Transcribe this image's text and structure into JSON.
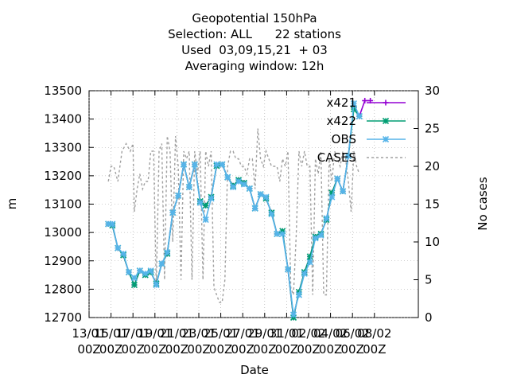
{
  "chart_data": {
    "type": "line",
    "title_lines": [
      "Geopotential 150hPa",
      "Selection: ALL      22 stations",
      "Used  03,09,15,21  + 03",
      "Averaging window: 12h"
    ],
    "xlabel": "Date",
    "ylabel": "m",
    "y2label": "No cases",
    "xlim": [
      0,
      30
    ],
    "ylim": [
      12700,
      13500
    ],
    "y2lim": [
      0,
      30
    ],
    "x_ticks": [
      {
        "v": 0,
        "l1": "13/01",
        "l2": "00Z"
      },
      {
        "v": 2,
        "l1": "15/01",
        "l2": "00Z"
      },
      {
        "v": 4,
        "l1": "17/01",
        "l2": "00Z"
      },
      {
        "v": 6,
        "l1": "19/01",
        "l2": "00Z"
      },
      {
        "v": 8,
        "l1": "21/01",
        "l2": "00Z"
      },
      {
        "v": 10,
        "l1": "23/01",
        "l2": "00Z"
      },
      {
        "v": 12,
        "l1": "25/01",
        "l2": "00Z"
      },
      {
        "v": 14,
        "l1": "27/01",
        "l2": "00Z"
      },
      {
        "v": 16,
        "l1": "29/01",
        "l2": "00Z"
      },
      {
        "v": 18,
        "l1": "31/01",
        "l2": "00Z"
      },
      {
        "v": 20,
        "l1": "02/02",
        "l2": "00Z"
      },
      {
        "v": 22,
        "l1": "04/02",
        "l2": "00Z"
      },
      {
        "v": 24,
        "l1": "06/02",
        "l2": "00Z"
      },
      {
        "v": 26,
        "l1": "08/02",
        "l2": "00Z"
      }
    ],
    "y_ticks": [
      "12700",
      "12800",
      "12900",
      "13000",
      "13100",
      "13200",
      "13300",
      "13400",
      "13500"
    ],
    "y2_ticks": [
      "0",
      "5",
      "10",
      "15",
      "20",
      "25",
      "30"
    ],
    "series": [
      {
        "name": "x421",
        "color": "#9400d3",
        "marker": "plus",
        "axis": "y",
        "x": [
          1.75,
          2.125,
          2.625,
          3.125,
          3.625,
          4.125,
          4.625,
          5.125,
          5.625,
          6.125,
          6.625,
          7.125,
          7.625,
          8.125,
          8.625,
          9.125,
          9.625,
          10.125,
          10.625,
          11.125,
          11.625,
          12.125,
          12.625,
          13.125,
          13.625,
          14.125,
          14.625,
          15.125,
          15.625,
          16.125,
          16.625,
          17.125,
          17.625,
          18.125,
          18.625,
          19.125,
          19.625,
          20.125,
          20.625,
          21.125,
          21.625,
          22.125,
          22.625,
          23.125,
          23.625,
          24.125,
          24.625,
          25.125,
          25.625
        ],
        "y": [
          13030,
          13025,
          12945,
          12920,
          12860,
          12815,
          12865,
          12850,
          12860,
          12820,
          12890,
          12925,
          13070,
          13130,
          13240,
          13160,
          13240,
          13110,
          13095,
          13125,
          13235,
          13240,
          13195,
          13165,
          13185,
          13175,
          13155,
          13085,
          13135,
          13120,
          13070,
          12995,
          13005,
          12870,
          12700,
          12790,
          12860,
          12915,
          12985,
          12995,
          13045,
          13140,
          13190,
          13145,
          13270,
          13440,
          13410,
          13465,
          13465
        ]
      },
      {
        "name": "x422",
        "color": "#009e73",
        "marker": "star",
        "axis": "y",
        "x": [
          1.75,
          2.125,
          2.625,
          3.125,
          3.625,
          4.125,
          4.625,
          5.125,
          5.625,
          6.125,
          6.625,
          7.125,
          7.625,
          8.125,
          8.625,
          9.125,
          9.625,
          10.125,
          10.625,
          11.125,
          11.625,
          12.125,
          12.625,
          13.125,
          13.625,
          14.125,
          14.625,
          15.125,
          15.625,
          16.125,
          16.625,
          17.125,
          17.625,
          18.125,
          18.625,
          19.125,
          19.625,
          20.125,
          20.625,
          21.125,
          21.625,
          22.125,
          22.625,
          23.125,
          23.625,
          24.125,
          24.625
        ],
        "y": [
          13030,
          13025,
          12945,
          12920,
          12860,
          12815,
          12865,
          12850,
          12860,
          12820,
          12890,
          12925,
          13070,
          13130,
          13240,
          13160,
          13240,
          13110,
          13095,
          13125,
          13235,
          13240,
          13195,
          13165,
          13185,
          13175,
          13155,
          13085,
          13135,
          13120,
          13070,
          12995,
          13005,
          12870,
          12700,
          12790,
          12860,
          12915,
          12985,
          12995,
          13045,
          13140,
          13190,
          13145,
          13270,
          13435,
          13410
        ]
      },
      {
        "name": "OBS",
        "color": "#56b4e9",
        "marker": "star",
        "axis": "y",
        "x": [
          1.75,
          2.125,
          2.625,
          3.125,
          3.625,
          4.125,
          4.625,
          5.125,
          5.625,
          6.125,
          6.625,
          7.125,
          7.625,
          8.125,
          8.625,
          9.125,
          9.625,
          10.125,
          10.625,
          11.125,
          11.625,
          12.125,
          12.625,
          13.125,
          13.625,
          14.125,
          14.625,
          15.125,
          15.625,
          16.125,
          16.625,
          17.125,
          17.625,
          18.125,
          18.625,
          19.125,
          19.625,
          20.125,
          20.625,
          21.125,
          21.625,
          22.125,
          22.625,
          23.125,
          23.625,
          24.125,
          24.625
        ],
        "y": [
          13030,
          13030,
          12945,
          12925,
          12860,
          12840,
          12865,
          12855,
          12865,
          12815,
          12890,
          12930,
          13070,
          13130,
          13240,
          13160,
          13240,
          13105,
          13045,
          13120,
          13240,
          13240,
          13195,
          13160,
          13180,
          13170,
          13155,
          13085,
          13135,
          13125,
          13065,
          12995,
          12995,
          12870,
          12710,
          12780,
          12855,
          12895,
          12980,
          12990,
          13050,
          13125,
          13190,
          13145,
          13270,
          13455,
          13410
        ]
      },
      {
        "name": "CASES",
        "color": "#a0a0a0",
        "marker": "none",
        "dashed": true,
        "axis": "y2",
        "x": [
          1.75,
          2.0,
          2.25,
          2.625,
          3.0,
          3.375,
          3.75,
          4.0,
          4.125,
          4.375,
          4.625,
          4.875,
          5.125,
          5.375,
          5.625,
          5.875,
          6.125,
          6.375,
          6.625,
          6.875,
          7.125,
          7.375,
          7.625,
          7.875,
          8.125,
          8.375,
          8.625,
          8.875,
          9.125,
          9.375,
          9.625,
          9.875,
          10.125,
          10.375,
          10.625,
          10.875,
          11.125,
          11.375,
          11.625,
          11.875,
          12.125,
          12.375,
          12.625,
          12.875,
          13.125,
          13.375,
          13.625,
          13.875,
          14.125,
          14.375,
          14.625,
          14.875,
          15.125,
          15.375,
          15.625,
          15.875,
          16.125,
          16.375,
          16.625,
          16.875,
          17.125,
          17.375,
          17.625,
          17.875,
          18.125,
          18.375,
          18.625,
          18.875,
          19.125,
          19.375,
          19.625,
          19.875,
          20.125,
          20.375,
          20.625,
          20.875,
          21.125,
          21.375,
          21.625,
          21.875,
          22.125,
          22.375,
          22.625,
          22.875,
          23.125,
          23.375,
          23.625,
          23.875,
          24.125,
          24.375,
          24.625
        ],
        "y": [
          18,
          20,
          20,
          18,
          22,
          23,
          22,
          23,
          14,
          17,
          19,
          17,
          18,
          18,
          22,
          22,
          4,
          22,
          23,
          5,
          24,
          22,
          10,
          24,
          20,
          5,
          22,
          21,
          22,
          5,
          22,
          19,
          22,
          5,
          22,
          20,
          22,
          4,
          3,
          2,
          2,
          5,
          20,
          22,
          22,
          21,
          21,
          20,
          20,
          19,
          21,
          21,
          17,
          25,
          21,
          20,
          22,
          21,
          20,
          20,
          20,
          18,
          21,
          20,
          22,
          4,
          3,
          11,
          22,
          20,
          22,
          20,
          20,
          3,
          21,
          19,
          22,
          3,
          3,
          21,
          18,
          22,
          21,
          20,
          22,
          21,
          18,
          14,
          22,
          20,
          19
        ]
      }
    ]
  }
}
